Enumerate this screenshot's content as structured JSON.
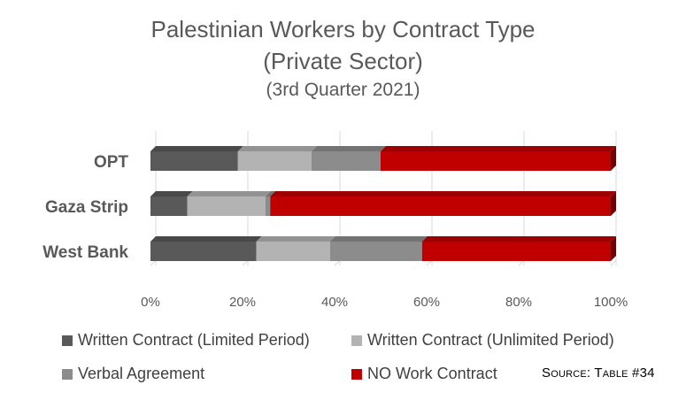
{
  "chart_data": {
    "type": "bar",
    "orientation": "horizontal",
    "stacking": "percent",
    "title": "Palestinian Workers by Contract Type",
    "subtitle": "(Private Sector)",
    "period": "(3rd Quarter 2021)",
    "categories": [
      "OPT",
      "Gaza Strip",
      "West Bank"
    ],
    "series": [
      {
        "name": "Written Contract (Limited Period)",
        "color": "#595959",
        "values": [
          19,
          8,
          23
        ]
      },
      {
        "name": "Written Contract (Unlimited Period)",
        "color": "#b3b3b3",
        "values": [
          16,
          17,
          16
        ]
      },
      {
        "name": "Verbal Agreement",
        "color": "#8c8c8c",
        "values": [
          15,
          1,
          20
        ]
      },
      {
        "name": "NO Work Contract",
        "color": "#c00000",
        "values": [
          50,
          74,
          41
        ]
      }
    ],
    "x_ticks": [
      "0%",
      "20%",
      "40%",
      "60%",
      "80%",
      "100%"
    ],
    "xlim": [
      0,
      100
    ],
    "grid": "vertical",
    "legend_position": "bottom"
  },
  "source": "Source: Table #34"
}
